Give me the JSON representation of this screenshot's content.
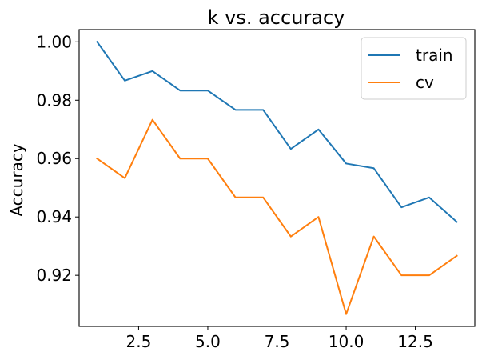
{
  "chart_data": {
    "type": "line",
    "title": "k vs. accuracy",
    "xlabel": "",
    "ylabel": "Accuracy",
    "xlim": [
      0.35,
      14.65
    ],
    "ylim": [
      0.9025,
      1.0042
    ],
    "x_ticks": [
      2.5,
      5.0,
      7.5,
      10.0,
      12.5
    ],
    "x_tick_labels": [
      "2.5",
      "5.0",
      "7.5",
      "10.0",
      "12.5"
    ],
    "y_ticks": [
      0.92,
      0.94,
      0.96,
      0.98,
      1.0
    ],
    "y_tick_labels": [
      "0.92",
      "0.94",
      "0.96",
      "0.98",
      "1.00"
    ],
    "grid": false,
    "legend_position": "upper right",
    "x": [
      1,
      2,
      3,
      4,
      5,
      6,
      7,
      8,
      9,
      10,
      11,
      12,
      13,
      14
    ],
    "series": [
      {
        "name": "train",
        "color": "#1f77b4",
        "values": [
          1.0,
          0.9867,
          0.99,
          0.9833,
          0.9833,
          0.9767,
          0.9767,
          0.9633,
          0.97,
          0.9583,
          0.9567,
          0.9433,
          0.9467,
          0.9383
        ]
      },
      {
        "name": "cv",
        "color": "#ff7f0e",
        "values": [
          0.96,
          0.9533,
          0.9733,
          0.96,
          0.96,
          0.9467,
          0.9467,
          0.9333,
          0.94,
          0.9067,
          0.9333,
          0.92,
          0.92,
          0.9267
        ]
      }
    ]
  }
}
